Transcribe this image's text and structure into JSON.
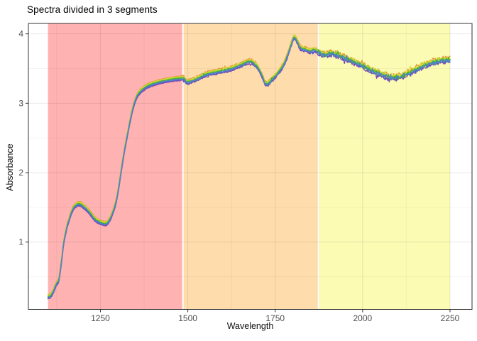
{
  "title": "Spectra divided in 3 segments",
  "axes": {
    "x_label": "Wavelength",
    "y_label": "Absorbance"
  },
  "styles": {
    "panel_background": "#FFFFFF",
    "panel_border": "#333333",
    "tick_color": "#333333",
    "tick_label_color": "#4D4D4D",
    "gridline_major": "rgba(0,0,0,0.085)",
    "gridline_minor": "rgba(0,0,0,0.045)"
  },
  "chart_data": {
    "type": "line",
    "title": "Spectra divided in 3 segments",
    "xlabel": "Wavelength",
    "ylabel": "Absorbance",
    "xlim": [
      1044,
      2313
    ],
    "ylim": [
      0.03,
      4.15
    ],
    "x_ticks": [
      1250,
      1500,
      1750,
      2000,
      2250
    ],
    "y_ticks": [
      1,
      2,
      3,
      4
    ],
    "x_minor_ticks": [
      1125,
      1375,
      1625,
      1875,
      2125
    ],
    "y_minor_ticks": [
      0.5,
      1.5,
      2.5,
      3.5
    ],
    "grid": true,
    "legend": "none",
    "segments": [
      {
        "name": "segment-1",
        "wavelength_from": 1100,
        "wavelength_to": 1484,
        "fill": "#FFB2B2"
      },
      {
        "name": "segment-2",
        "wavelength_from": 1488,
        "wavelength_to": 1872,
        "fill": "#FEDCAC"
      },
      {
        "name": "segment-3",
        "wavelength_from": 1876,
        "wavelength_to": 2250,
        "fill": "#FBFBB4"
      }
    ],
    "base_curve": {
      "wavelength": [
        1100,
        1108,
        1116,
        1124,
        1131,
        1138,
        1145,
        1155,
        1169,
        1180,
        1190,
        1200,
        1215,
        1235,
        1252,
        1268,
        1278,
        1286,
        1294,
        1302,
        1310,
        1318,
        1326,
        1334,
        1344,
        1354,
        1366,
        1380,
        1400,
        1425,
        1450,
        1475,
        1488,
        1497,
        1520,
        1545,
        1570,
        1600,
        1625,
        1650,
        1680,
        1700,
        1712,
        1723,
        1740,
        1755,
        1770,
        1780,
        1790,
        1798,
        1804,
        1812,
        1822,
        1835,
        1850,
        1862,
        1872,
        1880,
        1895,
        1910,
        1925,
        1940,
        1958,
        1976,
        1995,
        2015,
        2035,
        2055,
        2075,
        2090,
        2110,
        2130,
        2150,
        2170,
        2190,
        2210,
        2230,
        2250
      ],
      "absorbance": [
        0.21,
        0.23,
        0.3,
        0.4,
        0.46,
        0.7,
        1.0,
        1.24,
        1.45,
        1.53,
        1.55,
        1.52,
        1.45,
        1.33,
        1.28,
        1.27,
        1.34,
        1.44,
        1.57,
        1.78,
        2.05,
        2.3,
        2.52,
        2.73,
        2.95,
        3.1,
        3.18,
        3.235,
        3.28,
        3.315,
        3.34,
        3.355,
        3.36,
        3.31,
        3.34,
        3.4,
        3.44,
        3.47,
        3.5,
        3.55,
        3.6,
        3.52,
        3.4,
        3.28,
        3.34,
        3.42,
        3.52,
        3.62,
        3.76,
        3.88,
        3.95,
        3.9,
        3.8,
        3.78,
        3.75,
        3.77,
        3.74,
        3.72,
        3.7,
        3.72,
        3.7,
        3.67,
        3.63,
        3.59,
        3.55,
        3.5,
        3.45,
        3.41,
        3.38,
        3.37,
        3.39,
        3.43,
        3.48,
        3.53,
        3.57,
        3.6,
        3.62,
        3.62
      ]
    },
    "series": [
      {
        "name": "spectrum-orange",
        "color": "#E29A3B",
        "offset": 0.034,
        "seed": 101
      },
      {
        "name": "spectrum-purple",
        "color": "#7C4BB0",
        "offset": -0.03,
        "seed": 102
      },
      {
        "name": "spectrum-indigo",
        "color": "#5A5EC4",
        "offset": -0.019,
        "seed": 103
      },
      {
        "name": "spectrum-yellow",
        "color": "#DFDC38",
        "offset": 0.024,
        "seed": 104
      },
      {
        "name": "spectrum-yellowgreen",
        "color": "#A5D32E",
        "offset": 0.013,
        "seed": 105
      },
      {
        "name": "spectrum-green",
        "color": "#3FB428",
        "offset": 0.003,
        "seed": 106
      },
      {
        "name": "spectrum-steelblue",
        "color": "#4E86C8",
        "offset": -0.008,
        "seed": 107
      }
    ],
    "segment_noise_boundaries": [
      1486,
      1874
    ],
    "noise_sd_by_segment": [
      0.006,
      0.014,
      0.032
    ],
    "sample_step": 2
  }
}
